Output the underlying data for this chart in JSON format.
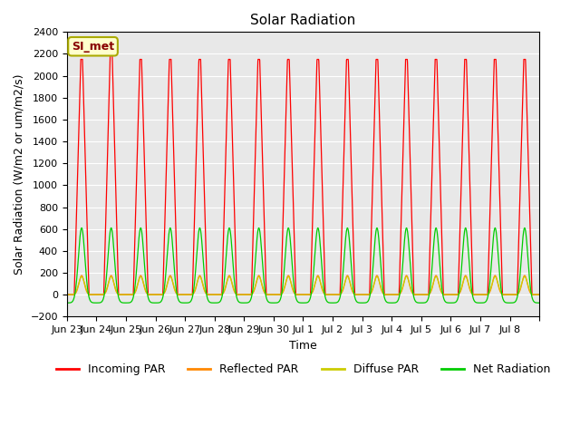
{
  "title": "Solar Radiation",
  "ylabel": "Solar Radiation (W/m2 or um/m2/s)",
  "xlabel": "Time",
  "ylim": [
    -200,
    2400
  ],
  "yticks": [
    -200,
    0,
    200,
    400,
    600,
    800,
    1000,
    1200,
    1400,
    1600,
    1800,
    2000,
    2200,
    2400
  ],
  "bg_color": "#e8e8e8",
  "fig_color": "#ffffff",
  "annotation_text": "SI_met",
  "annotation_bg": "#ffffcc",
  "annotation_border": "#aaaa00",
  "annotation_text_color": "#880000",
  "tick_positions": [
    0,
    1,
    2,
    3,
    4,
    5,
    6,
    7,
    8,
    9,
    10,
    11,
    12,
    13,
    14,
    15,
    16
  ],
  "tick_labels": [
    "Jun 23",
    "Jun 24",
    "Jun 25",
    "Jun 26",
    "Jun 27",
    "Jun 28",
    "Jun 29",
    "Jun 30",
    "Jul 1",
    "Jul 2",
    "Jul 3",
    "Jul 4",
    "Jul 5",
    "Jul 6",
    "Jul 7",
    "Jul 8",
    ""
  ],
  "series": {
    "incoming_par": {
      "color": "#ff0000",
      "label": "Incoming PAR"
    },
    "reflected_par": {
      "color": "#ff8800",
      "label": "Reflected PAR"
    },
    "diffuse_par": {
      "color": "#cccc00",
      "label": "Diffuse PAR"
    },
    "net_radiation": {
      "color": "#00cc00",
      "label": "Net Radiation"
    }
  },
  "n_days": 16,
  "points_per_day": 144
}
